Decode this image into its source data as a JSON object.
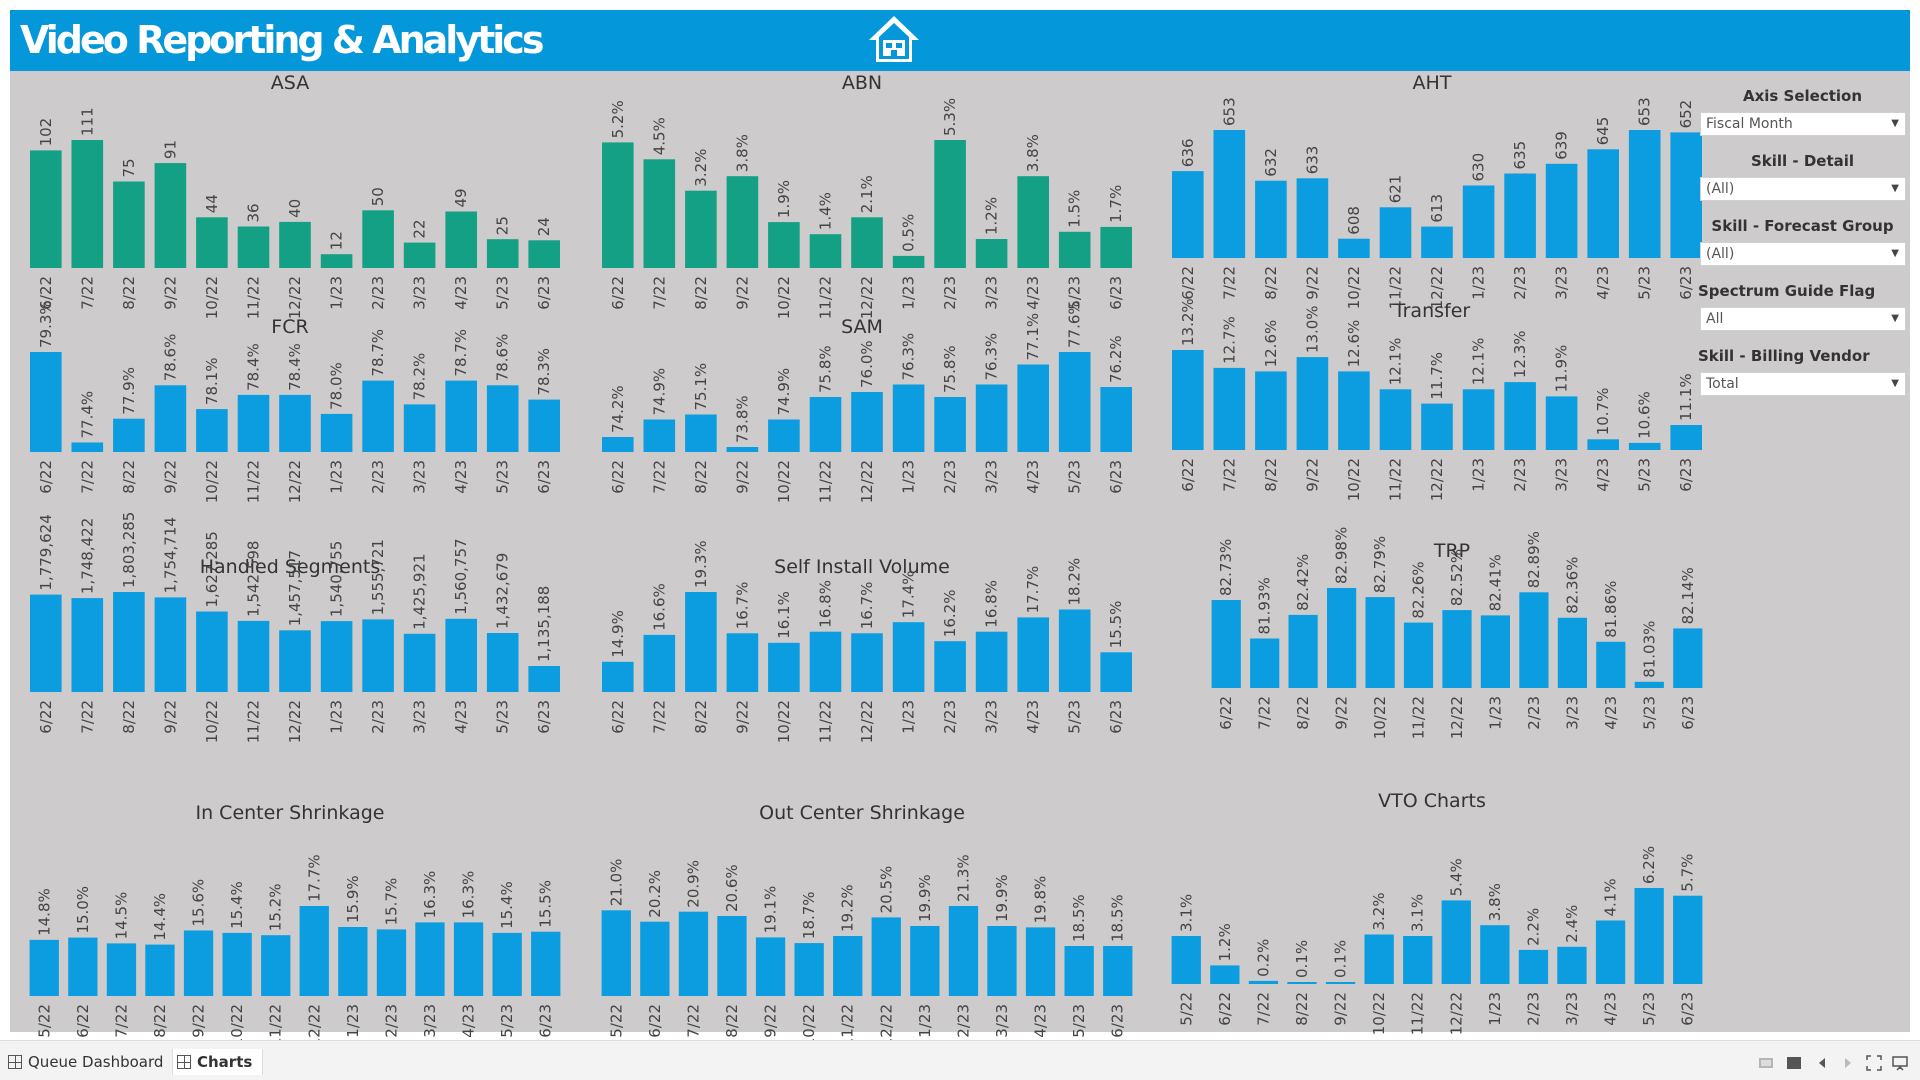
{
  "header": {
    "title": "Video Reporting & Analytics",
    "home_icon": "home-icon"
  },
  "colors": {
    "banner": "#0497d9",
    "teal": "#14a084",
    "blue": "#0c9de0",
    "background": "#cdcbcc"
  },
  "chart_data": [
    {
      "type": "bar",
      "title": "ASA",
      "color": "#14a084",
      "categories": [
        "6/22",
        "7/22",
        "8/22",
        "9/22",
        "10/22",
        "11/22",
        "12/22",
        "1/23",
        "2/23",
        "3/23",
        "4/23",
        "5/23",
        "6/23"
      ],
      "values": [
        102,
        111,
        75,
        91,
        44,
        36,
        40,
        12,
        50,
        22,
        49,
        25,
        24
      ],
      "labels": [
        "102",
        "111",
        "75",
        "91",
        "44",
        "36",
        "40",
        "12",
        "50",
        "22",
        "49",
        "25",
        "24"
      ]
    },
    {
      "type": "bar",
      "title": "ABN",
      "color": "#14a084",
      "categories": [
        "6/22",
        "7/22",
        "8/22",
        "9/22",
        "10/22",
        "11/22",
        "12/22",
        "1/23",
        "2/23",
        "3/23",
        "4/23",
        "5/23",
        "6/23"
      ],
      "values": [
        5.2,
        4.5,
        3.2,
        3.8,
        1.9,
        1.4,
        2.1,
        0.5,
        5.3,
        1.2,
        3.8,
        1.5,
        1.7
      ],
      "labels": [
        "5.2%",
        "4.5%",
        "3.2%",
        "3.8%",
        "1.9%",
        "1.4%",
        "2.1%",
        "0.5%",
        "5.3%",
        "1.2%",
        "3.8%",
        "1.5%",
        "1.7%"
      ]
    },
    {
      "type": "bar",
      "title": "AHT",
      "color": "#0c9de0",
      "categories": [
        "6/22",
        "7/22",
        "8/22",
        "9/22",
        "10/22",
        "11/22",
        "12/22",
        "1/23",
        "2/23",
        "3/23",
        "4/23",
        "5/23",
        "6/23"
      ],
      "values": [
        636,
        653,
        632,
        633,
        608,
        621,
        613,
        630,
        635,
        639,
        645,
        653,
        652
      ],
      "labels": [
        "636",
        "653",
        "632",
        "633",
        "608",
        "621",
        "613",
        "630",
        "635",
        "639",
        "645",
        "653",
        "652"
      ]
    },
    {
      "type": "bar",
      "title": "FCR",
      "color": "#0c9de0",
      "categories": [
        "6/22",
        "7/22",
        "8/22",
        "9/22",
        "10/22",
        "11/22",
        "12/22",
        "1/23",
        "2/23",
        "3/23",
        "4/23",
        "5/23",
        "6/23"
      ],
      "values": [
        79.3,
        77.4,
        77.9,
        78.6,
        78.1,
        78.4,
        78.4,
        78.0,
        78.7,
        78.2,
        78.7,
        78.6,
        78.3
      ],
      "labels": [
        "79.3%",
        "77.4%",
        "77.9%",
        "78.6%",
        "78.1%",
        "78.4%",
        "78.4%",
        "78.0%",
        "78.7%",
        "78.2%",
        "78.7%",
        "78.6%",
        "78.3%"
      ]
    },
    {
      "type": "bar",
      "title": "SAM",
      "color": "#0c9de0",
      "categories": [
        "6/22",
        "7/22",
        "8/22",
        "9/22",
        "10/22",
        "11/22",
        "12/22",
        "1/23",
        "2/23",
        "3/23",
        "4/23",
        "5/23",
        "6/23"
      ],
      "values": [
        74.2,
        74.9,
        75.1,
        73.8,
        74.9,
        75.8,
        76.0,
        76.3,
        75.8,
        76.3,
        77.1,
        77.6,
        76.2
      ],
      "labels": [
        "74.2%",
        "74.9%",
        "75.1%",
        "73.8%",
        "74.9%",
        "75.8%",
        "76.0%",
        "76.3%",
        "75.8%",
        "76.3%",
        "77.1%",
        "77.6%",
        "76.2%"
      ]
    },
    {
      "type": "bar",
      "title": "Transfer",
      "color": "#0c9de0",
      "categories": [
        "6/22",
        "7/22",
        "8/22",
        "9/22",
        "10/22",
        "11/22",
        "12/22",
        "1/23",
        "2/23",
        "3/23",
        "4/23",
        "5/23",
        "6/23"
      ],
      "values": [
        13.2,
        12.7,
        12.6,
        13.0,
        12.6,
        12.1,
        11.7,
        12.1,
        12.3,
        11.9,
        10.7,
        10.6,
        11.1
      ],
      "labels": [
        "13.2%",
        "12.7%",
        "12.6%",
        "13.0%",
        "12.6%",
        "12.1%",
        "11.7%",
        "12.1%",
        "12.3%",
        "11.9%",
        "10.7%",
        "10.6%",
        "11.1%"
      ]
    },
    {
      "type": "bar",
      "title": "Handled Segments",
      "color": "#0c9de0",
      "categories": [
        "6/22",
        "7/22",
        "8/22",
        "9/22",
        "10/22",
        "11/22",
        "12/22",
        "1/23",
        "2/23",
        "3/23",
        "4/23",
        "5/23",
        "6/23"
      ],
      "values": [
        1779624,
        1748422,
        1803285,
        1754714,
        1627285,
        1542598,
        1457517,
        1540755,
        1555721,
        1425921,
        1560757,
        1432679,
        1135188
      ],
      "labels": [
        "1,779,624",
        "1,748,422",
        "1,803,285",
        "1,754,714",
        "1,627,285",
        "1,542,598",
        "1,457,517",
        "1,540,755",
        "1,555,721",
        "1,425,921",
        "1,560,757",
        "1,432,679",
        "1,135,188"
      ]
    },
    {
      "type": "bar",
      "title": "Self Install Volume",
      "color": "#0c9de0",
      "categories": [
        "6/22",
        "7/22",
        "8/22",
        "9/22",
        "10/22",
        "11/22",
        "12/22",
        "1/23",
        "2/23",
        "3/23",
        "4/23",
        "5/23",
        "6/23"
      ],
      "values": [
        14.9,
        16.6,
        19.3,
        16.7,
        16.1,
        16.8,
        16.7,
        17.4,
        16.2,
        16.8,
        17.7,
        18.2,
        15.5
      ],
      "labels": [
        "14.9%",
        "16.6%",
        "19.3%",
        "16.7%",
        "16.1%",
        "16.8%",
        "16.7%",
        "17.4%",
        "16.2%",
        "16.8%",
        "17.7%",
        "18.2%",
        "15.5%"
      ]
    },
    {
      "type": "bar",
      "title": "TRP",
      "color": "#0c9de0",
      "categories": [
        "6/22",
        "7/22",
        "8/22",
        "9/22",
        "10/22",
        "11/22",
        "12/22",
        "1/23",
        "2/23",
        "3/23",
        "4/23",
        "5/23",
        "6/23"
      ],
      "values": [
        82.73,
        81.93,
        82.42,
        82.98,
        82.79,
        82.26,
        82.52,
        82.41,
        82.89,
        82.36,
        81.86,
        81.03,
        82.14
      ],
      "labels": [
        "82.73%",
        "81.93%",
        "82.42%",
        "82.98%",
        "82.79%",
        "82.26%",
        "82.52%",
        "82.41%",
        "82.89%",
        "82.36%",
        "81.86%",
        "81.03%",
        "82.14%"
      ]
    },
    {
      "type": "bar",
      "title": "In Center Shrinkage",
      "color": "#0c9de0",
      "categories": [
        "5/22",
        "6/22",
        "7/22",
        "8/22",
        "9/22",
        "10/22",
        "11/22",
        "12/22",
        "1/23",
        "2/23",
        "3/23",
        "4/23",
        "5/23",
        "6/23"
      ],
      "values": [
        14.8,
        15.0,
        14.5,
        14.4,
        15.6,
        15.4,
        15.2,
        17.7,
        15.9,
        15.7,
        16.3,
        16.3,
        15.4,
        15.5
      ],
      "labels": [
        "14.8%",
        "15.0%",
        "14.5%",
        "14.4%",
        "15.6%",
        "15.4%",
        "15.2%",
        "17.7%",
        "15.9%",
        "15.7%",
        "16.3%",
        "16.3%",
        "15.4%",
        "15.5%"
      ]
    },
    {
      "type": "bar",
      "title": "Out Center Shrinkage",
      "color": "#0c9de0",
      "categories": [
        "5/22",
        "6/22",
        "7/22",
        "8/22",
        "9/22",
        "10/22",
        "11/22",
        "12/22",
        "1/23",
        "2/23",
        "3/23",
        "4/23",
        "5/23",
        "6/23"
      ],
      "values": [
        21.0,
        20.2,
        20.9,
        20.6,
        19.1,
        18.7,
        19.2,
        20.5,
        19.9,
        21.3,
        19.9,
        19.8,
        18.5,
        18.5
      ],
      "labels": [
        "21.0%",
        "20.2%",
        "20.9%",
        "20.6%",
        "19.1%",
        "18.7%",
        "19.2%",
        "20.5%",
        "19.9%",
        "21.3%",
        "19.9%",
        "19.8%",
        "18.5%",
        "18.5%"
      ]
    },
    {
      "type": "bar",
      "title": "VTO Charts",
      "color": "#0c9de0",
      "categories": [
        "5/22",
        "6/22",
        "7/22",
        "8/22",
        "9/22",
        "10/22",
        "11/22",
        "12/22",
        "1/23",
        "2/23",
        "3/23",
        "4/23",
        "5/23",
        "6/23"
      ],
      "values": [
        3.1,
        1.2,
        0.2,
        0.1,
        0.1,
        3.2,
        3.1,
        5.4,
        3.8,
        2.2,
        2.4,
        4.1,
        6.2,
        5.7
      ],
      "labels": [
        "3.1%",
        "1.2%",
        "0.2%",
        "0.1%",
        "0.1%",
        "3.2%",
        "3.1%",
        "5.4%",
        "3.8%",
        "2.2%",
        "2.4%",
        "4.1%",
        "6.2%",
        "5.7%"
      ]
    }
  ],
  "filters": [
    {
      "label": "Axis Selection",
      "value": "Fiscal Month"
    },
    {
      "label": "Skill - Detail",
      "value": "(All)"
    },
    {
      "label": "Skill - Forecast Group",
      "value": "(All)"
    },
    {
      "label": "Spectrum Guide Flag",
      "value": "All"
    },
    {
      "label": "Skill - Billing Vendor",
      "value": "Total"
    }
  ],
  "tabs": [
    {
      "label": "Queue Dashboard",
      "active": false
    },
    {
      "label": "Charts",
      "active": true
    }
  ]
}
